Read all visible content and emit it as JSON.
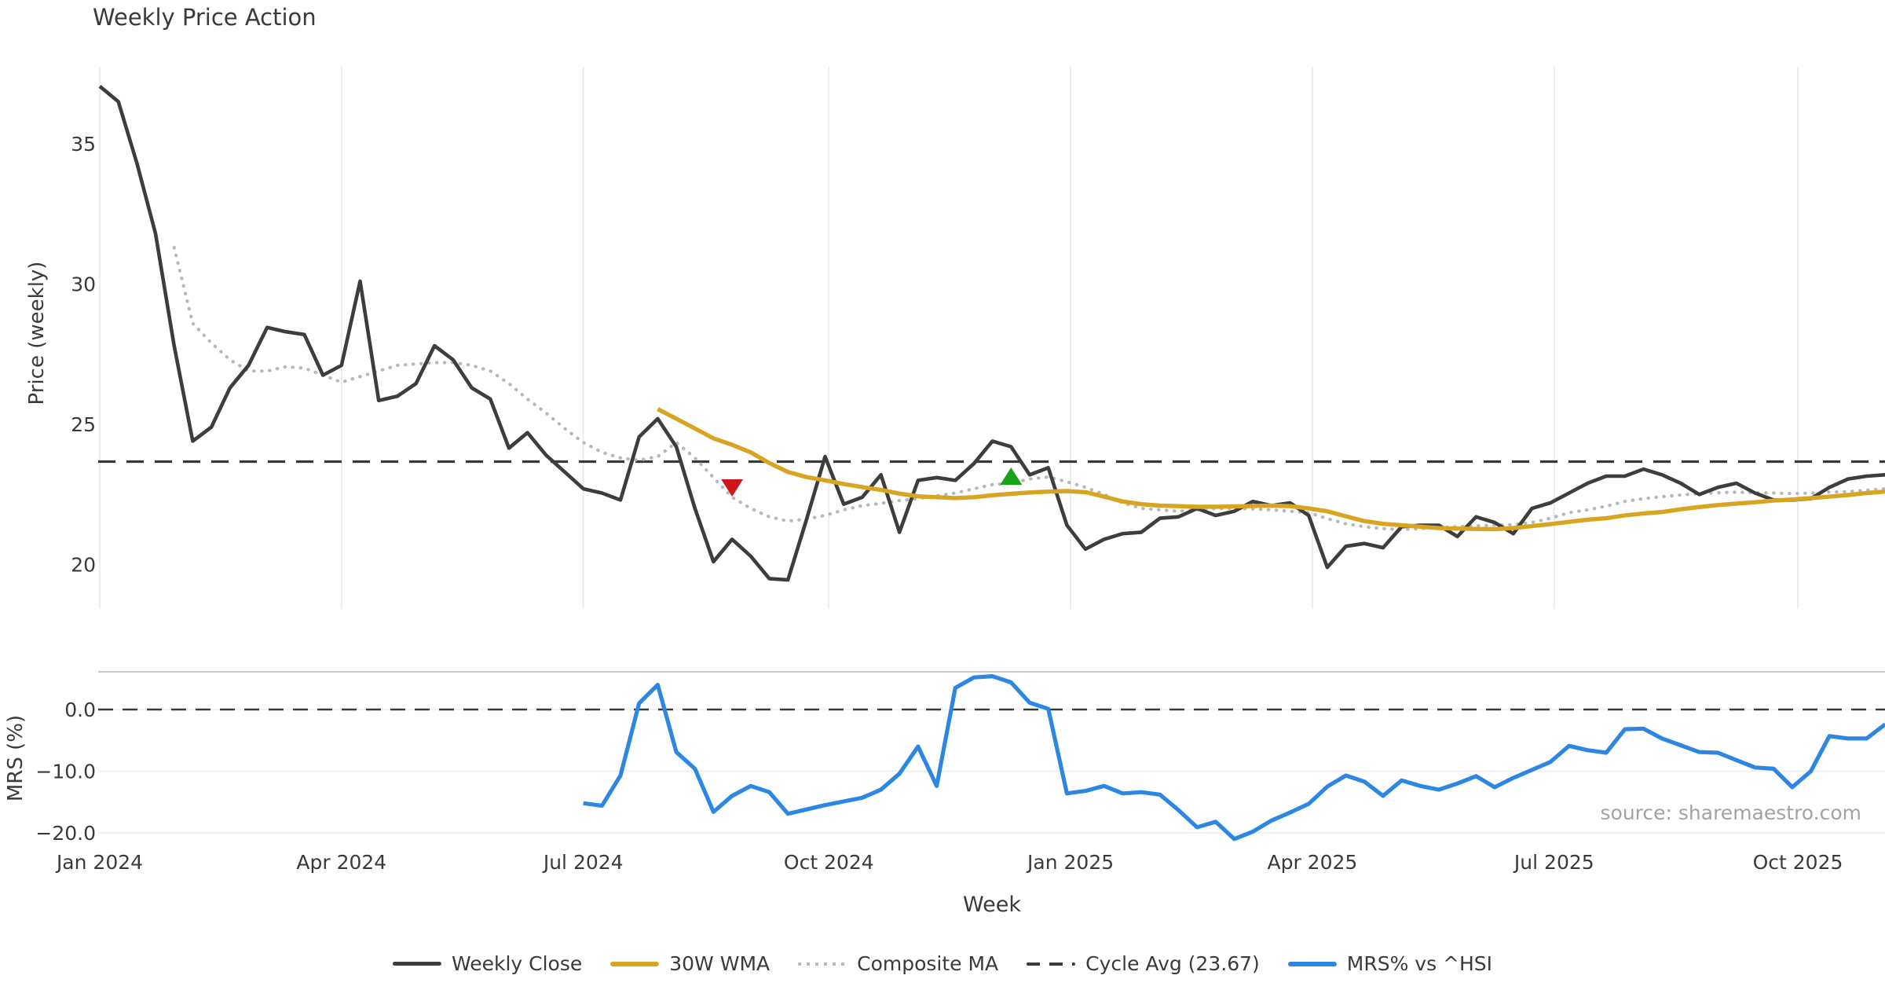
{
  "title": "Weekly Price Action",
  "source_text": "source: sharemaestro.com",
  "axes": {
    "price_label": "Price (weekly)",
    "mrs_label": "MRS (%)",
    "week_label": "Week",
    "price_ticks": [
      {
        "label": "35",
        "value": 35
      },
      {
        "label": "30",
        "value": 30
      },
      {
        "label": "25",
        "value": 25
      },
      {
        "label": "20",
        "value": 20
      }
    ],
    "mrs_ticks": [
      {
        "label": "0.0",
        "value": 0
      },
      {
        "label": "−10.0",
        "value": -10
      },
      {
        "label": "−20.0",
        "value": -20
      }
    ],
    "x_ticks": [
      {
        "label": "Jan 2024",
        "week": 0
      },
      {
        "label": "Apr 2024",
        "week": 13
      },
      {
        "label": "Jul 2024",
        "week": 26
      },
      {
        "label": "Oct 2024",
        "week": 39.2
      },
      {
        "label": "Jan 2025",
        "week": 52.2
      },
      {
        "label": "Apr 2025",
        "week": 65.2
      },
      {
        "label": "Jul 2025",
        "week": 78.2
      },
      {
        "label": "Oct 2025",
        "week": 91.3
      }
    ]
  },
  "legend": {
    "items": [
      {
        "label": "Weekly Close",
        "style": "solid-dark"
      },
      {
        "label": "30W WMA",
        "style": "solid-gold"
      },
      {
        "label": "Composite MA",
        "style": "dotted-gray"
      },
      {
        "label": "Cycle Avg (23.67)",
        "style": "dashed-dark"
      },
      {
        "label": "MRS% vs ^HSI",
        "style": "solid-blue"
      }
    ]
  },
  "colors": {
    "weekly_close": "#3d3d3d",
    "wma_30w": "#d7a522",
    "composite_ma": "#b8b8b8",
    "cycle_avg": "#3a3a3a",
    "mrs": "#2d87e2",
    "marker_down": "#cd1719",
    "marker_up": "#17a317",
    "grid_vertical": "#eaeaea",
    "grid_horizontal": "#ededed",
    "mrs_top_border": "#c9c9c9",
    "tick_text": "#3a3a3a"
  },
  "chart_data": {
    "type": "line",
    "title": "Weekly Price Action",
    "xlabel": "Week",
    "x_axis_note": "weekly points, week 0 = Jan 2024 tick; ticks every quarter through Oct 2025",
    "panels": {
      "price": {
        "ylabel": "Price (weekly)",
        "ylim": [
          18.4,
          37.75
        ],
        "yticks": [
          20,
          25,
          30,
          35
        ]
      },
      "mrs": {
        "ylabel": "MRS (%)",
        "ylim": [
          -22.3,
          6.1
        ],
        "yticks": [
          -20,
          -10,
          0
        ]
      }
    },
    "grid": "vertical gridlines on price panel only; faint horizontal gridlines on MRS panel",
    "legend_position": "bottom center",
    "hlines": [
      {
        "name": "Cycle Avg",
        "panel": "price",
        "value": 23.67,
        "style": "dashed"
      },
      {
        "name": "zero line",
        "panel": "mrs",
        "value": 0.0,
        "style": "dashed"
      }
    ],
    "markers": [
      {
        "name": "sell-signal",
        "shape": "triangle-down",
        "week": 34,
        "value": 22.73
      },
      {
        "name": "buy-signal",
        "shape": "triangle-up",
        "week": 49,
        "value": 23.15
      }
    ],
    "series": [
      {
        "name": "Weekly Close",
        "panel": "price",
        "start_week": 0,
        "values": [
          37.05,
          36.5,
          34.3,
          31.8,
          27.8,
          24.4,
          24.9,
          26.3,
          27.1,
          28.45,
          28.3,
          28.2,
          26.75,
          27.1,
          30.1,
          25.85,
          26.0,
          26.45,
          27.8,
          27.3,
          26.3,
          25.9,
          24.15,
          24.7,
          23.9,
          23.3,
          22.7,
          22.55,
          22.3,
          24.55,
          25.2,
          24.2,
          22.0,
          20.1,
          20.9,
          20.3,
          19.5,
          19.45,
          21.6,
          23.85,
          22.15,
          22.4,
          23.2,
          21.15,
          23.0,
          23.1,
          23.0,
          23.6,
          24.4,
          24.2,
          23.2,
          23.45,
          21.4,
          20.55,
          20.9,
          21.1,
          21.15,
          21.65,
          21.7,
          22.0,
          21.75,
          21.9,
          22.25,
          22.1,
          22.2,
          21.75,
          19.9,
          20.65,
          20.75,
          20.6,
          21.35,
          21.4,
          21.4,
          21.0,
          21.7,
          21.5,
          21.1,
          22.0,
          22.2,
          22.55,
          22.9,
          23.15,
          23.15,
          23.4,
          23.2,
          22.9,
          22.5,
          22.75,
          22.9,
          22.55,
          22.3,
          22.3,
          22.35,
          22.75,
          23.05,
          23.15,
          23.2
        ]
      },
      {
        "name": "30W WMA",
        "panel": "price",
        "start_week": 30,
        "values": [
          25.54,
          25.2,
          24.85,
          24.5,
          24.27,
          24.0,
          23.62,
          23.3,
          23.12,
          23.0,
          22.87,
          22.76,
          22.66,
          22.53,
          22.43,
          22.4,
          22.37,
          22.4,
          22.47,
          22.52,
          22.57,
          22.6,
          22.62,
          22.58,
          22.42,
          22.25,
          22.15,
          22.1,
          22.08,
          22.06,
          22.06,
          22.07,
          22.09,
          22.1,
          22.08,
          22.0,
          21.9,
          21.72,
          21.55,
          21.45,
          21.4,
          21.35,
          21.3,
          21.28,
          21.27,
          21.26,
          21.3,
          21.37,
          21.44,
          21.52,
          21.6,
          21.65,
          21.75,
          21.82,
          21.87,
          21.97,
          22.05,
          22.12,
          22.17,
          22.22,
          22.28,
          22.32,
          22.37,
          22.42,
          22.48,
          22.55,
          22.6
        ]
      },
      {
        "name": "Composite MA",
        "panel": "price",
        "start_week": 4,
        "values": [
          31.3,
          28.6,
          27.9,
          27.3,
          26.9,
          26.9,
          27.05,
          27.0,
          26.75,
          26.5,
          26.7,
          26.9,
          27.1,
          27.15,
          27.2,
          27.2,
          27.1,
          26.9,
          26.45,
          25.9,
          25.4,
          24.85,
          24.35,
          24.0,
          23.8,
          23.72,
          23.85,
          24.35,
          23.8,
          23.1,
          22.4,
          22.0,
          21.7,
          21.55,
          21.62,
          21.75,
          21.95,
          22.1,
          22.18,
          22.28,
          22.35,
          22.45,
          22.55,
          22.7,
          22.85,
          22.9,
          23.05,
          23.12,
          22.95,
          22.75,
          22.5,
          22.2,
          22.0,
          21.95,
          21.9,
          21.95,
          22.0,
          22.0,
          21.98,
          21.95,
          21.9,
          21.85,
          21.64,
          21.45,
          21.35,
          21.28,
          21.25,
          21.28,
          21.32,
          21.35,
          21.38,
          21.4,
          21.42,
          21.5,
          21.65,
          21.85,
          21.95,
          22.08,
          22.25,
          22.35,
          22.42,
          22.48,
          22.53,
          22.56,
          22.58,
          22.56,
          22.55,
          22.53,
          22.55,
          22.58,
          22.6,
          22.65,
          22.7
        ]
      },
      {
        "name": "MRS% vs ^HSI",
        "panel": "mrs",
        "start_week": 26,
        "values": [
          -15.2,
          -15.6,
          -10.7,
          1.0,
          4.0,
          -6.9,
          -9.6,
          -16.6,
          -14.0,
          -12.4,
          -13.4,
          -16.9,
          -16.2,
          -15.5,
          -14.9,
          -14.3,
          -13.0,
          -10.4,
          -6.0,
          -12.4,
          3.5,
          5.2,
          5.4,
          4.4,
          1.1,
          0.1,
          -13.6,
          -13.2,
          -12.4,
          -13.6,
          -13.4,
          -13.8,
          -16.3,
          -19.1,
          -18.2,
          -21.0,
          -19.8,
          -18.0,
          -16.7,
          -15.3,
          -12.5,
          -10.7,
          -11.7,
          -14.0,
          -11.5,
          -12.4,
          -13.0,
          -12.0,
          -10.8,
          -12.6,
          -11.1,
          -9.8,
          -8.5,
          -5.9,
          -6.6,
          -7.0,
          -3.2,
          -3.1,
          -4.7,
          -5.8,
          -6.9,
          -7.0,
          -8.2,
          -9.4,
          -9.6,
          -12.6,
          -10.0,
          -4.3,
          -4.7,
          -4.7,
          -2.4
        ]
      }
    ]
  }
}
